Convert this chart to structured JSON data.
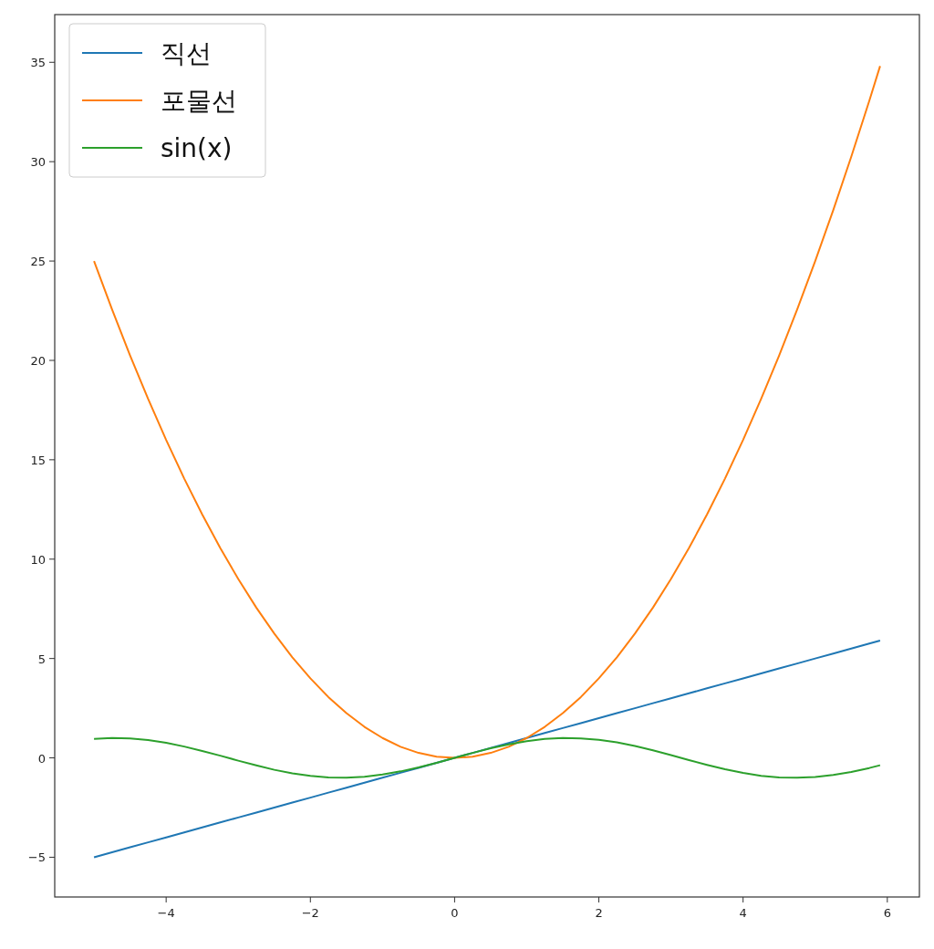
{
  "chart_data": {
    "type": "line",
    "x": [
      -5,
      -4.75,
      -4.5,
      -4.25,
      -4,
      -3.75,
      -3.5,
      -3.25,
      -3,
      -2.75,
      -2.5,
      -2.25,
      -2,
      -1.75,
      -1.5,
      -1.25,
      -1,
      -0.75,
      -0.5,
      -0.25,
      0,
      0.25,
      0.5,
      0.75,
      1,
      1.25,
      1.5,
      1.75,
      2,
      2.25,
      2.5,
      2.75,
      3,
      3.25,
      3.5,
      3.75,
      4,
      4.25,
      4.5,
      4.75,
      5,
      5.25,
      5.5,
      5.75,
      5.9
    ],
    "series": [
      {
        "name": "직선",
        "color": "#1f77b4",
        "values": [
          -5,
          -4.75,
          -4.5,
          -4.25,
          -4,
          -3.75,
          -3.5,
          -3.25,
          -3,
          -2.75,
          -2.5,
          -2.25,
          -2,
          -1.75,
          -1.5,
          -1.25,
          -1,
          -0.75,
          -0.5,
          -0.25,
          0,
          0.25,
          0.5,
          0.75,
          1,
          1.25,
          1.5,
          1.75,
          2,
          2.25,
          2.5,
          2.75,
          3,
          3.25,
          3.5,
          3.75,
          4,
          4.25,
          4.5,
          4.75,
          5,
          5.25,
          5.5,
          5.75,
          5.9
        ]
      },
      {
        "name": "포물선",
        "color": "#ff7f0e",
        "values": [
          25,
          22.56,
          20.25,
          18.06,
          16,
          14.06,
          12.25,
          10.56,
          9,
          7.56,
          6.25,
          5.06,
          4,
          3.06,
          2.25,
          1.56,
          1,
          0.56,
          0.25,
          0.06,
          0,
          0.06,
          0.25,
          0.56,
          1,
          1.56,
          2.25,
          3.06,
          4,
          5.06,
          6.25,
          7.56,
          9,
          10.56,
          12.25,
          14.06,
          16,
          18.06,
          20.25,
          22.56,
          25,
          27.56,
          30.25,
          33.06,
          34.81
        ]
      },
      {
        "name": "sin(x)",
        "color": "#2ca02c",
        "values": [
          0.96,
          1,
          0.98,
          0.9,
          0.76,
          0.57,
          0.35,
          0.11,
          -0.14,
          -0.38,
          -0.6,
          -0.78,
          -0.91,
          -0.98,
          -1,
          -0.95,
          -0.84,
          -0.68,
          -0.48,
          -0.25,
          0,
          0.25,
          0.48,
          0.68,
          0.84,
          0.95,
          1,
          0.98,
          0.91,
          0.78,
          0.6,
          0.38,
          0.14,
          -0.11,
          -0.35,
          -0.57,
          -0.76,
          -0.9,
          -0.98,
          -1,
          -0.96,
          -0.86,
          -0.71,
          -0.51,
          -0.37
        ]
      }
    ],
    "xlim": [
      -5.545,
      6.445
    ],
    "ylim": [
      -7,
      37.4
    ],
    "xticks": [
      {
        "value": -4,
        "label": "−4"
      },
      {
        "value": -2,
        "label": "−2"
      },
      0,
      2,
      4,
      6
    ],
    "yticks": [
      {
        "value": -5,
        "label": "−5"
      },
      0,
      5,
      10,
      15,
      20,
      25,
      30,
      35
    ],
    "legend": "top left",
    "grid": false
  }
}
